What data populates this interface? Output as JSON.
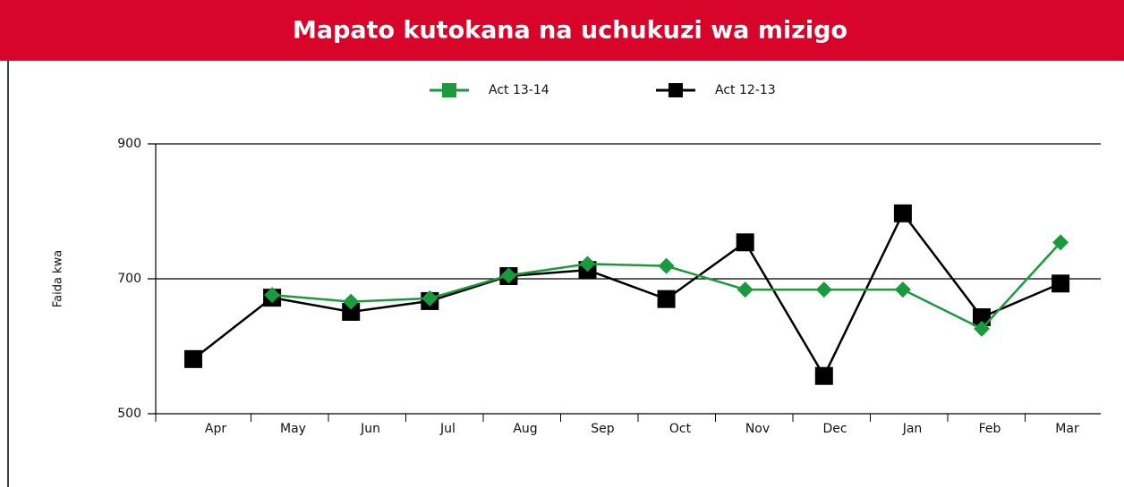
{
  "chart_data": {
    "type": "line",
    "title": "Mapato kutokana na uchukuzi wa mizigo",
    "ylabel": "Faida kwa",
    "categories": [
      "Apr",
      "May",
      "Jun",
      "Jul",
      "Aug",
      "Sep",
      "Oct",
      "Nov",
      "Dec",
      "Jan",
      "Feb",
      "Mar"
    ],
    "series": [
      {
        "name": "Act 13-14",
        "color": "#1a9a3c",
        "marker": "diamond",
        "values": [
          null,
          676,
          666,
          671,
          705,
          722,
          719,
          684,
          684,
          684,
          626,
          754
        ]
      },
      {
        "name": "Act 12-13",
        "color": "#000000",
        "marker": "square",
        "values": [
          581,
          672,
          651,
          667,
          704,
          713,
          670,
          754,
          556,
          797,
          643,
          693
        ]
      }
    ],
    "ylim": [
      500,
      900
    ],
    "yticks": [
      500,
      700,
      900
    ],
    "grid": true,
    "legend": "top"
  }
}
